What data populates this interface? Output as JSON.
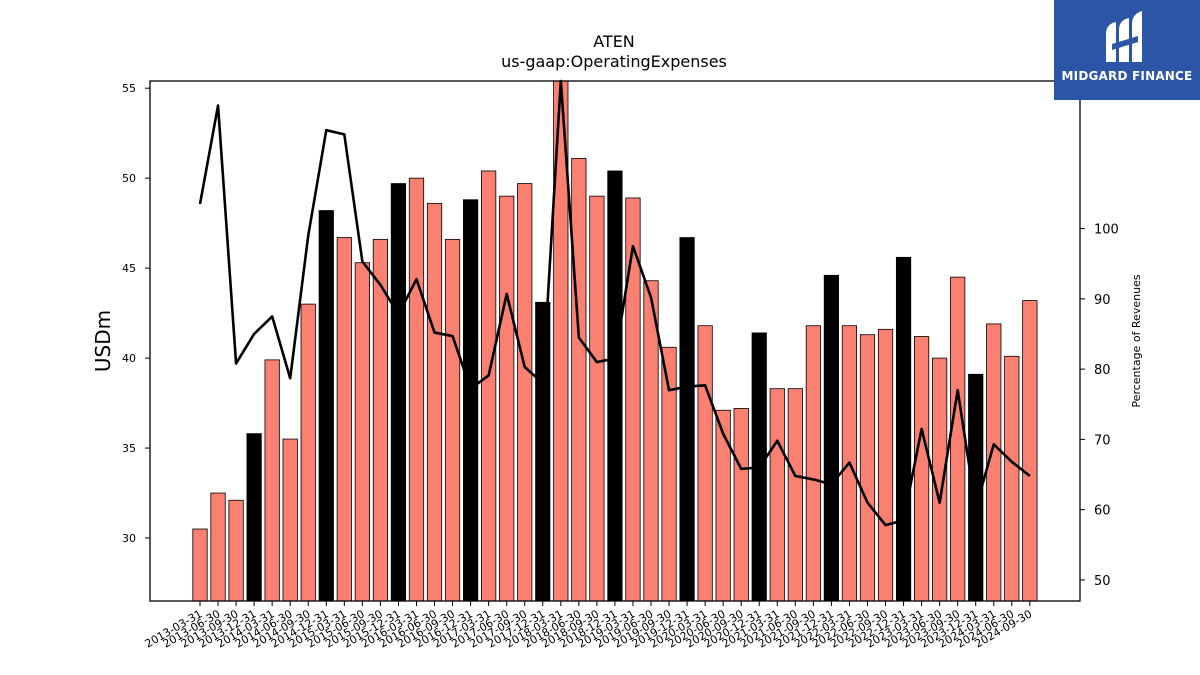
{
  "brand": {
    "name": "MIDGARD FINANCE",
    "background": "#2b56a8"
  },
  "chart_data": {
    "type": "bar",
    "title": "ATEN",
    "subtitle": "us-gaap:OperatingExpenses",
    "ylabel": "USDm",
    "y2label": "Percentage of Revenues",
    "ylim": [
      26.5,
      55.4
    ],
    "y2lim": [
      47,
      121
    ],
    "yticks": [
      30,
      35,
      40,
      45,
      50,
      55
    ],
    "y2ticks": [
      50,
      60,
      70,
      80,
      90,
      100
    ],
    "bar_color": "#fa8072",
    "q4_bar_color": "#000000",
    "line_color": "#000000",
    "categories": [
      "2013-03-31",
      "2013-06-30",
      "2013-09-30",
      "2013-12-31",
      "2014-03-31",
      "2014-06-30",
      "2014-09-30",
      "2014-12-31",
      "2015-03-31",
      "2015-06-30",
      "2015-09-30",
      "2015-12-31",
      "2016-03-31",
      "2016-06-30",
      "2016-09-30",
      "2016-12-31",
      "2017-03-31",
      "2017-06-30",
      "2017-09-30",
      "2017-12-31",
      "2018-03-31",
      "2018-06-30",
      "2018-09-30",
      "2018-12-31",
      "2019-03-31",
      "2019-06-30",
      "2019-09-30",
      "2019-12-31",
      "2020-03-31",
      "2020-06-30",
      "2020-09-30",
      "2020-12-31",
      "2021-03-31",
      "2021-06-30",
      "2021-09-30",
      "2021-12-31",
      "2022-03-31",
      "2022-06-30",
      "2022-09-30",
      "2022-12-31",
      "2023-03-31",
      "2023-06-30",
      "2023-09-30",
      "2023-12-31",
      "2024-03-31",
      "2024-06-30",
      "2024-09-30"
    ],
    "series": [
      {
        "name": "",
        "kind": "bar",
        "values": [
          30.5,
          32.5,
          32.1,
          35.8,
          39.9,
          35.5,
          43.0,
          48.2,
          46.7,
          45.3,
          46.6,
          49.7,
          50.0,
          48.6,
          46.6,
          48.8,
          50.4,
          49.0,
          49.7,
          43.1,
          55.8,
          51.1,
          49.0,
          50.4,
          48.9,
          44.3,
          40.6,
          46.7,
          41.8,
          37.1,
          37.2,
          41.4,
          38.3,
          38.3,
          41.8,
          44.6,
          41.8,
          41.3,
          41.6,
          45.6,
          41.2,
          40.0,
          44.5,
          39.1,
          41.9,
          40.1,
          43.2
        ]
      },
      {
        "name": "",
        "kind": "line",
        "axis": "right",
        "values": [
          103.5,
          117.5,
          80.8,
          85.0,
          87.5,
          78.7,
          99.0,
          114.0,
          113.4,
          95.3,
          92.0,
          87.8,
          92.8,
          85.2,
          84.7,
          77.2,
          79.1,
          90.7,
          80.3,
          78.0,
          121.0,
          84.5,
          81.0,
          81.5,
          97.5,
          90.2,
          77.0,
          77.5,
          77.7,
          70.8,
          65.8,
          66.0,
          69.8,
          64.8,
          64.3,
          63.6,
          66.7,
          61.0,
          57.8,
          58.5,
          71.5,
          61.0,
          77.0,
          60.2,
          69.3,
          66.8,
          64.8
        ]
      }
    ]
  }
}
